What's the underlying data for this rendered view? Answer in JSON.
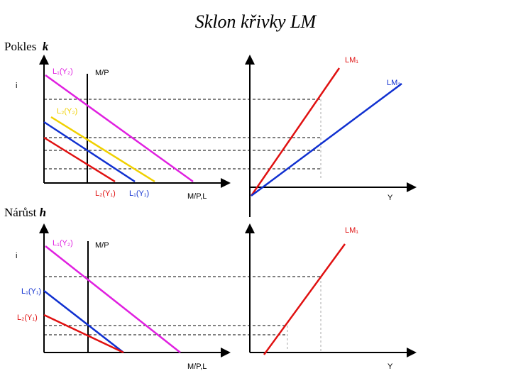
{
  "title": "Sklon křivky LM",
  "sections": {
    "top": {
      "label_prefix": "Pokles",
      "label_var": "k",
      "left_panel": {
        "y_axis_label": "i",
        "x_axis_label": "M/P,L",
        "supply_label": "M/P",
        "curves": [
          {
            "label": "L₁(Y₂)",
            "color": "#e020e0"
          },
          {
            "label": "L₂(Y₂)",
            "color": "#f0d000"
          },
          {
            "label": "L₁(Y₁)",
            "color": "#1030d0"
          },
          {
            "label": "L₂(Y₁)",
            "color": "#e01010"
          }
        ]
      },
      "right_panel": {
        "x_axis_label": "Y",
        "curves": [
          {
            "label": "LM₁",
            "color": "#e01010"
          },
          {
            "label": "LM₂",
            "color": "#1030d0"
          }
        ]
      }
    },
    "bottom": {
      "label_prefix": "Nárůst",
      "label_var": "h",
      "left_panel": {
        "y_axis_label": "i",
        "x_axis_label": "M/P,L",
        "supply_label": "M/P",
        "curves": [
          {
            "label": "L₁(Y₂)",
            "color": "#e020e0"
          },
          {
            "label": "L₁(Y₁)",
            "color": "#1030d0"
          },
          {
            "label": "L₂(Y₁)",
            "color": "#e01010"
          }
        ]
      },
      "right_panel": {
        "x_axis_label": "Y",
        "curves": [
          {
            "label": "LM₁",
            "color": "#e01010"
          }
        ]
      }
    }
  }
}
